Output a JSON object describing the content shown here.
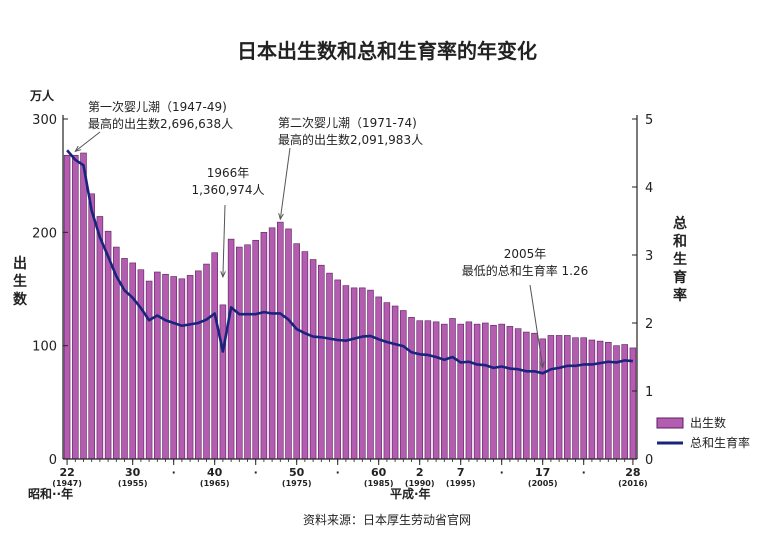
{
  "chart_data": {
    "type": "bar+line",
    "title": "日本出生数和总和生育率的年变化",
    "source": "资料来源：日本厚生劳动省官网",
    "left_axis": {
      "unit": "万人",
      "label": "出生数",
      "ylim": [
        0,
        300
      ],
      "ticks": [
        "0",
        "100",
        "200",
        "300"
      ]
    },
    "right_axis": {
      "label": "总和生育率",
      "ylim": [
        0,
        5
      ],
      "ticks": [
        "0",
        "1",
        "2",
        "3",
        "4",
        "5"
      ]
    },
    "x_axis": {
      "era_left": "昭和··年",
      "era_right": "平成·年",
      "tick_labels": [
        {
          "year": 1947,
          "label": "22",
          "sub": "(1947)"
        },
        {
          "year": 1955,
          "label": "30",
          "sub": "(1955)"
        },
        {
          "year": 1960,
          "label": "·",
          "sub": ""
        },
        {
          "year": 1965,
          "label": "40",
          "sub": "(1965)"
        },
        {
          "year": 1970,
          "label": "·",
          "sub": ""
        },
        {
          "year": 1975,
          "label": "50",
          "sub": "(1975)"
        },
        {
          "year": 1980,
          "label": "·",
          "sub": ""
        },
        {
          "year": 1985,
          "label": "60",
          "sub": "(1985)"
        },
        {
          "year": 1990,
          "label": "2",
          "sub": "(1990)"
        },
        {
          "year": 1995,
          "label": "7",
          "sub": "(1995)"
        },
        {
          "year": 2000,
          "label": "·",
          "sub": ""
        },
        {
          "year": 2005,
          "label": "17",
          "sub": "(2005)"
        },
        {
          "year": 2010,
          "label": "·",
          "sub": ""
        },
        {
          "year": 2016,
          "label": "28",
          "sub": "(2016)"
        }
      ]
    },
    "years": [
      1947,
      1948,
      1949,
      1950,
      1951,
      1952,
      1953,
      1954,
      1955,
      1956,
      1957,
      1958,
      1959,
      1960,
      1961,
      1962,
      1963,
      1964,
      1965,
      1966,
      1967,
      1968,
      1969,
      1970,
      1971,
      1972,
      1973,
      1974,
      1975,
      1976,
      1977,
      1978,
      1979,
      1980,
      1981,
      1982,
      1983,
      1984,
      1985,
      1986,
      1987,
      1988,
      1989,
      1990,
      1991,
      1992,
      1993,
      1994,
      1995,
      1996,
      1997,
      1998,
      1999,
      2000,
      2001,
      2002,
      2003,
      2004,
      2005,
      2006,
      2007,
      2008,
      2009,
      2010,
      2011,
      2012,
      2013,
      2014,
      2015,
      2016
    ],
    "series": [
      {
        "name": "出生数",
        "kind": "bar",
        "color": "#b45cb0",
        "values": [
          268,
          268,
          270,
          234,
          214,
          201,
          187,
          177,
          173,
          167,
          157,
          165,
          163,
          161,
          159,
          162,
          166,
          172,
          182,
          136,
          194,
          187,
          189,
          193,
          200,
          204,
          209,
          203,
          190,
          183,
          176,
          171,
          164,
          158,
          153,
          151,
          151,
          149,
          143,
          138,
          135,
          131,
          125,
          122,
          122,
          121,
          119,
          124,
          119,
          121,
          119,
          120,
          118,
          119,
          117,
          115,
          112,
          111,
          106,
          109,
          109,
          109,
          107,
          107,
          105,
          104,
          103,
          100,
          101,
          98
        ]
      },
      {
        "name": "总和生育率",
        "kind": "line",
        "color": "#1a237e",
        "values": [
          4.54,
          4.4,
          4.32,
          3.65,
          3.26,
          2.98,
          2.69,
          2.48,
          2.37,
          2.22,
          2.04,
          2.11,
          2.04,
          2.0,
          1.96,
          1.98,
          2.0,
          2.05,
          2.14,
          1.58,
          2.23,
          2.13,
          2.13,
          2.13,
          2.16,
          2.14,
          2.14,
          2.05,
          1.91,
          1.85,
          1.8,
          1.79,
          1.77,
          1.75,
          1.74,
          1.77,
          1.8,
          1.81,
          1.76,
          1.72,
          1.69,
          1.66,
          1.57,
          1.54,
          1.53,
          1.5,
          1.46,
          1.5,
          1.42,
          1.43,
          1.39,
          1.38,
          1.34,
          1.36,
          1.33,
          1.32,
          1.29,
          1.29,
          1.26,
          1.32,
          1.34,
          1.37,
          1.37,
          1.39,
          1.39,
          1.41,
          1.43,
          1.42,
          1.45,
          1.44
        ]
      }
    ],
    "annotations": [
      {
        "lines": [
          "第一次婴儿潮（1947-49)",
          "最高的出生数2,696,638人"
        ],
        "target_year": 1949,
        "target_series": "出生数"
      },
      {
        "lines": [
          "第二次婴儿潮（1971-74)",
          "最高的出生数2,091,983人"
        ],
        "target_year": 1973,
        "target_series": "出生数"
      },
      {
        "lines": [
          "1966年",
          "1,360,974人"
        ],
        "target_year": 1966,
        "target_series": "出生数"
      },
      {
        "lines": [
          "2005年",
          "最低的总和生育率 1.26"
        ],
        "target_year": 2005,
        "target_series": "总和生育率"
      }
    ],
    "legend": {
      "position": "bottom-right"
    },
    "colors": {
      "bar": "#b45cb0",
      "bar_edge": "#5a1f5e",
      "line": "#1a237e"
    }
  }
}
